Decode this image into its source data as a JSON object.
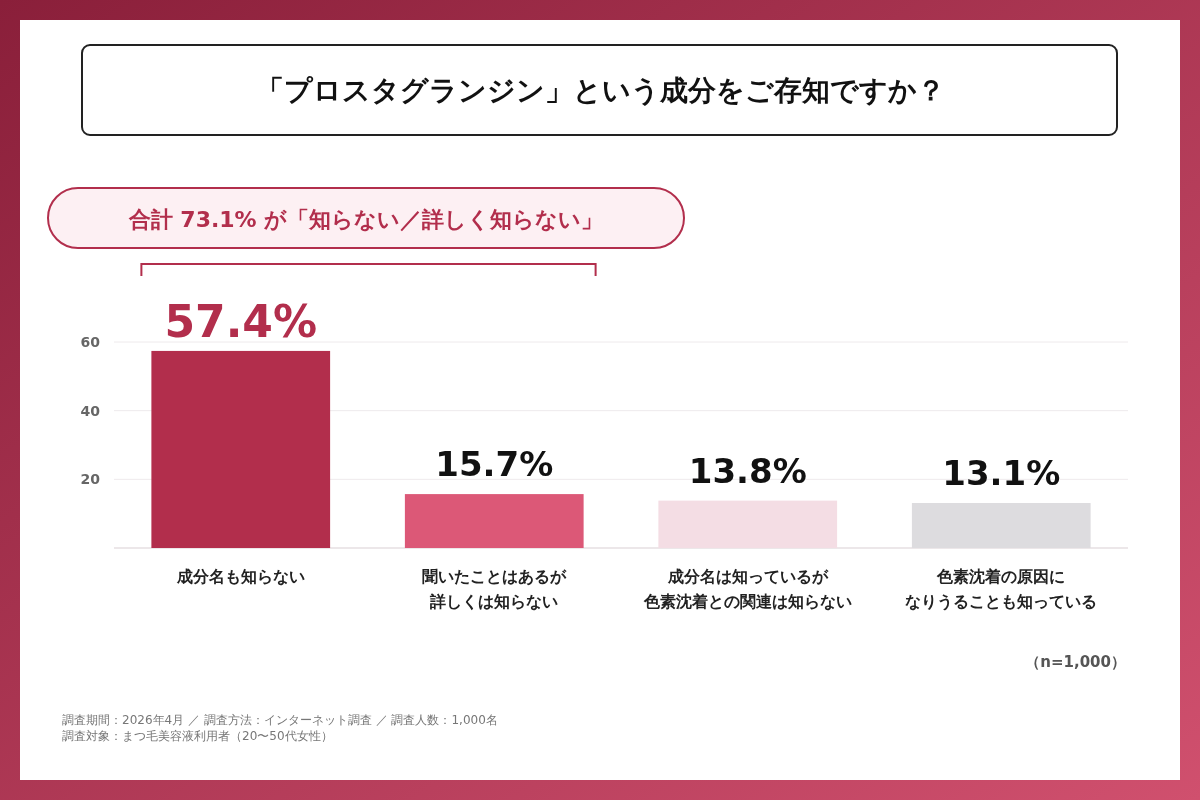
{
  "chart_data": {
    "type": "bar",
    "title": "「プロスタグランジン」という成分をご存知ですか？",
    "categories": [
      "成分名も知らない",
      "聞いたことはあるが詳しくは知らない",
      "成分名は知っているが色素沈着との関連は知らない",
      "色素沈着の原因になりうることも知っている"
    ],
    "values": [
      57.4,
      15.7,
      13.8,
      13.1
    ],
    "colors": [
      "#b22e4c",
      "#dc5877",
      "#f4dde4",
      "#dddcdf"
    ],
    "value_labels": [
      "57.4%",
      "15.7%",
      "13.8%",
      "13.1%"
    ],
    "ylim": [
      0,
      60
    ],
    "yticks": [
      20,
      40,
      60
    ],
    "grid": "y",
    "annotations": [
      "合計 73.1% が「知らない／詳しく知らない」",
      "（n=1,000）",
      "調査期間：2026年4月 ／ 調査方法：インターネット調査 ／ 調査人数：1,000名",
      "調査対象：まつ毛美容液利用者（20〜50代女性）"
    ]
  }
}
